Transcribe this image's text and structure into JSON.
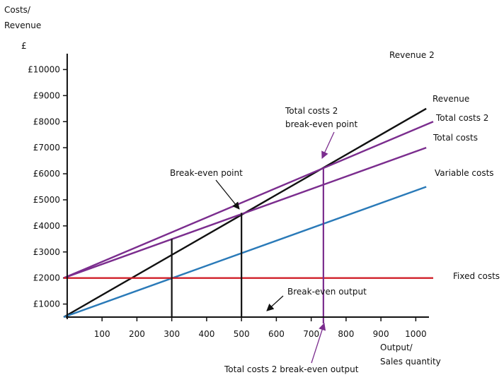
{
  "chart_data": {
    "type": "line",
    "ylabel_lines": [
      "Costs/",
      "Revenue",
      "£"
    ],
    "xlabel_lines": [
      "Output/",
      "Sales quantity"
    ],
    "xlim": [
      -10,
      1050
    ],
    "ylim": [
      500,
      10500
    ],
    "x_ticks": [
      100,
      200,
      300,
      400,
      500,
      600,
      700,
      800,
      900,
      1000
    ],
    "x_tick_labels": [
      "100",
      "200",
      "300",
      "400",
      "500",
      "600",
      "700",
      "800",
      "900",
      "1000"
    ],
    "y_ticks": [
      1000,
      2000,
      3000,
      4000,
      5000,
      6000,
      7000,
      8000,
      9000,
      10000
    ],
    "y_tick_labels": [
      "£1000",
      "£2000",
      "£3000",
      "£4000",
      "£5000",
      "£6000",
      "£7000",
      "£8000",
      "£9000",
      "£10000"
    ],
    "colors": {
      "revenue": "#111111",
      "total_costs": "#7b2d8e",
      "variable_costs": "#2a7ab8",
      "fixed_costs": "#d0202a",
      "markers": "#111111",
      "tc2_marker": "#7b2d8e"
    },
    "series": [
      {
        "key": "revenue",
        "name": "Revenue",
        "x": [
          -10,
          1030
        ],
        "y": [
          500,
          8500
        ]
      },
      {
        "key": "total_costs_2",
        "name": "Total costs 2",
        "x": [
          -10,
          1050
        ],
        "y": [
          2000,
          8000
        ]
      },
      {
        "key": "total_costs",
        "name": "Total costs",
        "x": [
          -10,
          1030
        ],
        "y": [
          2000,
          7000
        ]
      },
      {
        "key": "variable_costs",
        "name": "Variable costs",
        "x": [
          -10,
          1030
        ],
        "y": [
          500,
          5500
        ]
      },
      {
        "key": "fixed_costs",
        "name": "Fixed costs",
        "x": [
          -10,
          1050
        ],
        "y": [
          2000,
          2000
        ]
      }
    ],
    "vertical_markers": [
      {
        "key": "output_300",
        "x": 300,
        "y_top": 3500
      },
      {
        "key": "break_even_output",
        "x": 500,
        "y_top": 4500
      },
      {
        "key": "tc2_break_even_output",
        "x": 735,
        "y_top": 6200
      }
    ],
    "annotations": {
      "revenue_2": "Revenue 2",
      "total_costs_2_break_even_point": [
        "Total costs 2",
        "break-even point"
      ],
      "break_even_point": "Break-even point",
      "break_even_output": "Break-even output",
      "total_costs_2_break_even_output": "Total costs 2 break-even output"
    },
    "grid": false,
    "legend": "none"
  }
}
